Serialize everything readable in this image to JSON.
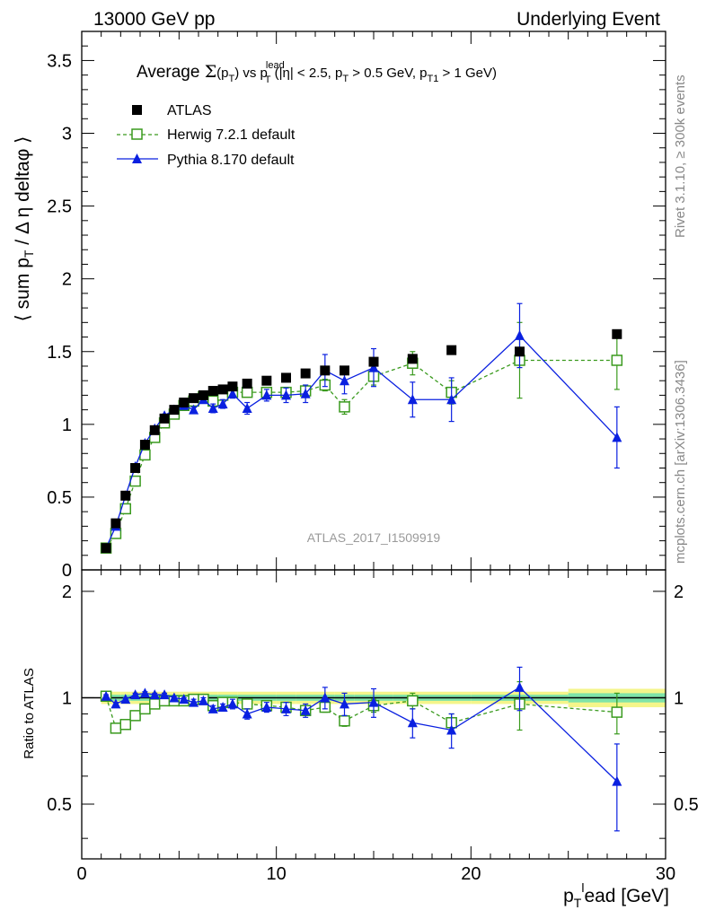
{
  "header": {
    "left": "13000 GeV pp",
    "right": "Underlying Event"
  },
  "title": {
    "prefix": "Average ",
    "sigma": "Σ",
    "paren_open": "(p",
    "sub_T": "T",
    "paren_close": ")",
    "vs": " vs p",
    "sup_lead": "lead",
    "rest1": " (|η| < 2.5, p",
    "rest2": " > 0.5 GeV, p",
    "sub_T1": "T1",
    "rest3": " > 1 GeV)"
  },
  "side_texts": {
    "rivet": "Rivet 3.1.10, ≥ 300k events",
    "mcplots": "mcplots.cern.ch [arXiv:1306.3436]"
  },
  "analysis_label": "ATLAS_2017_I1509919",
  "axes": {
    "ylabel_main": "⟨ sum p_T / Δη deltaφ ⟩",
    "ylabel_ratio": "Ratio to ATLAS",
    "xlabel": "p_T^lead [GeV]"
  },
  "legend": [
    {
      "label": "ATLAS",
      "color": "#000000",
      "marker": "filled-square"
    },
    {
      "label": "Herwig 7.2.1 default",
      "color": "#3a9a1e",
      "marker": "open-square"
    },
    {
      "label": "Pythia 8.170 default",
      "color": "#0a20e0",
      "marker": "filled-triangle"
    }
  ],
  "chart_data": {
    "type": "scatter",
    "xlim": [
      0,
      30
    ],
    "ylim": [
      0,
      3.7
    ],
    "ratio_ylim": [
      0.35,
      2.3
    ],
    "x_ticks": [
      0,
      10,
      20,
      30
    ],
    "y_ticks": [
      0,
      0.5,
      1,
      1.5,
      2,
      2.5,
      3,
      3.5
    ],
    "ratio_ticks": [
      0.5,
      1,
      2
    ],
    "series": [
      {
        "name": "ATLAS",
        "x": [
          1.25,
          1.75,
          2.25,
          2.75,
          3.25,
          3.75,
          4.25,
          4.75,
          5.25,
          5.75,
          6.25,
          6.75,
          7.25,
          7.75,
          8.5,
          9.5,
          10.5,
          11.5,
          12.5,
          13.5,
          15.0,
          17.0,
          19.0,
          22.5,
          27.5
        ],
        "y": [
          0.15,
          0.32,
          0.51,
          0.7,
          0.86,
          0.96,
          1.04,
          1.1,
          1.15,
          1.18,
          1.2,
          1.23,
          1.24,
          1.26,
          1.28,
          1.3,
          1.32,
          1.35,
          1.37,
          1.37,
          1.43,
          1.45,
          1.51,
          1.5,
          1.62
        ]
      },
      {
        "name": "Herwig 7.2.1 default",
        "x": [
          1.25,
          1.75,
          2.25,
          2.75,
          3.25,
          3.75,
          4.25,
          4.75,
          5.25,
          5.75,
          6.25,
          6.75,
          7.25,
          7.75,
          8.5,
          9.5,
          10.5,
          11.5,
          12.5,
          13.5,
          15.0,
          17.0,
          19.0,
          22.5,
          27.5
        ],
        "y": [
          0.15,
          0.25,
          0.42,
          0.61,
          0.79,
          0.91,
          1.01,
          1.07,
          1.13,
          1.16,
          1.19,
          1.16,
          1.2,
          1.22,
          1.22,
          1.22,
          1.22,
          1.23,
          1.27,
          1.12,
          1.33,
          1.42,
          1.22,
          1.44,
          1.44
        ],
        "err": [
          0.01,
          0.01,
          0.01,
          0.01,
          0.01,
          0.01,
          0.01,
          0.01,
          0.01,
          0.01,
          0.01,
          0.02,
          0.02,
          0.02,
          0.03,
          0.03,
          0.03,
          0.04,
          0.04,
          0.05,
          0.06,
          0.08,
          0.08,
          0.26,
          0.2
        ],
        "ratio": [
          1.01,
          0.82,
          0.84,
          0.89,
          0.93,
          0.96,
          0.98,
          0.98,
          0.98,
          0.99,
          0.99,
          0.95,
          0.97,
          0.97,
          0.96,
          0.95,
          0.94,
          0.92,
          0.94,
          0.86,
          0.95,
          0.98,
          0.85,
          0.96,
          0.91
        ],
        "ratio_err": [
          0.01,
          0.01,
          0.01,
          0.01,
          0.01,
          0.01,
          0.01,
          0.01,
          0.01,
          0.01,
          0.01,
          0.02,
          0.02,
          0.02,
          0.02,
          0.02,
          0.02,
          0.03,
          0.03,
          0.03,
          0.04,
          0.05,
          0.05,
          0.15,
          0.12
        ]
      },
      {
        "name": "Pythia 8.170 default",
        "x": [
          1.25,
          1.75,
          2.25,
          2.75,
          3.25,
          3.75,
          4.25,
          4.75,
          5.25,
          5.75,
          6.25,
          6.75,
          7.25,
          7.75,
          8.5,
          9.5,
          10.5,
          11.5,
          12.5,
          13.5,
          15.0,
          17.0,
          19.0,
          22.5,
          27.5
        ],
        "y": [
          0.15,
          0.3,
          0.51,
          0.71,
          0.87,
          0.97,
          1.06,
          1.1,
          1.13,
          1.1,
          1.17,
          1.11,
          1.14,
          1.21,
          1.11,
          1.2,
          1.2,
          1.21,
          1.37,
          1.3,
          1.39,
          1.17,
          1.17,
          1.61,
          0.91
        ],
        "err": [
          0.01,
          0.01,
          0.01,
          0.01,
          0.01,
          0.01,
          0.01,
          0.02,
          0.02,
          0.02,
          0.02,
          0.03,
          0.03,
          0.03,
          0.04,
          0.04,
          0.05,
          0.06,
          0.11,
          0.09,
          0.13,
          0.12,
          0.15,
          0.22,
          0.21
        ],
        "ratio": [
          1.01,
          0.96,
          0.99,
          1.02,
          1.03,
          1.02,
          1.02,
          1.0,
          0.99,
          0.97,
          0.98,
          0.93,
          0.94,
          0.96,
          0.9,
          0.94,
          0.93,
          0.92,
          1.0,
          0.96,
          0.97,
          0.85,
          0.81,
          1.07,
          0.58
        ],
        "ratio_err": [
          0.01,
          0.01,
          0.01,
          0.01,
          0.01,
          0.01,
          0.01,
          0.01,
          0.01,
          0.02,
          0.02,
          0.02,
          0.02,
          0.03,
          0.03,
          0.03,
          0.04,
          0.04,
          0.07,
          0.07,
          0.09,
          0.08,
          0.09,
          0.15,
          0.16
        ]
      }
    ],
    "ratio_band": {
      "x_edges": [
        1.0,
        1.5,
        2.0,
        2.5,
        3.0,
        3.5,
        4.0,
        4.5,
        5.0,
        5.5,
        6.0,
        6.5,
        7.0,
        7.5,
        8.0,
        9.0,
        10.0,
        11.0,
        12.0,
        13.0,
        14.0,
        16.0,
        18.0,
        20.0,
        25.0,
        30.0
      ],
      "inner": [
        0.02,
        0.02,
        0.02,
        0.02,
        0.02,
        0.02,
        0.02,
        0.02,
        0.02,
        0.02,
        0.02,
        0.02,
        0.02,
        0.02,
        0.02,
        0.02,
        0.02,
        0.02,
        0.02,
        0.02,
        0.02,
        0.02,
        0.02,
        0.02,
        0.03
      ],
      "outer": [
        0.04,
        0.04,
        0.04,
        0.04,
        0.04,
        0.04,
        0.04,
        0.04,
        0.04,
        0.04,
        0.04,
        0.04,
        0.04,
        0.04,
        0.04,
        0.04,
        0.04,
        0.04,
        0.04,
        0.04,
        0.04,
        0.04,
        0.04,
        0.04,
        0.06
      ]
    },
    "colors": {
      "data": "#000000",
      "herwig": "#3a9a1e",
      "pythia": "#0a20e0",
      "band_inner": "#7fe3a8",
      "band_outer": "#f4f58a"
    }
  }
}
